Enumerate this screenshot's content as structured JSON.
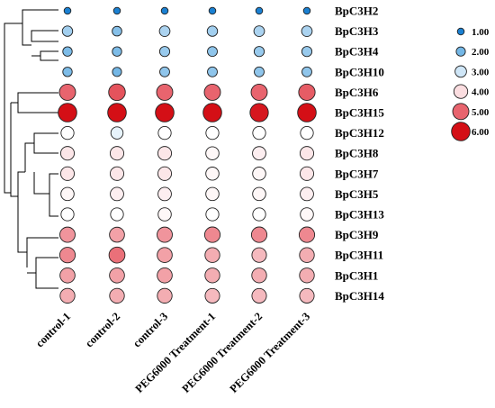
{
  "chart_data": {
    "type": "bubble-heatmap",
    "rows": [
      "BpC3H2",
      "BpC3H3",
      "BpC3H4",
      "BpC3H10",
      "BpC3H6",
      "BpC3H15",
      "BpC3H12",
      "BpC3H8",
      "BpC3H7",
      "BpC3H5",
      "BpC3H13",
      "BpC3H9",
      "BpC3H11",
      "BpC3H1",
      "BpC3H14"
    ],
    "columns": [
      "control-1",
      "control-2",
      "control-3",
      "PEG6000 Treatment-1",
      "PEG6000 Treatment-2",
      "PEG6000 Treatment-3"
    ],
    "values": [
      [
        1.0,
        1.0,
        1.0,
        1.0,
        1.0,
        1.0
      ],
      [
        2.5,
        2.2,
        2.6,
        2.5,
        2.6,
        2.6
      ],
      [
        2.1,
        2.1,
        2.4,
        2.3,
        2.4,
        2.4
      ],
      [
        2.1,
        2.0,
        2.3,
        2.3,
        2.3,
        2.3
      ],
      [
        5.0,
        5.2,
        5.0,
        5.0,
        5.0,
        5.1
      ],
      [
        6.0,
        6.0,
        6.0,
        6.0,
        5.9,
        6.0
      ],
      [
        3.6,
        3.3,
        3.6,
        3.6,
        3.6,
        3.6
      ],
      [
        3.9,
        3.9,
        3.9,
        3.7,
        3.8,
        3.9
      ],
      [
        3.9,
        3.9,
        3.9,
        3.7,
        3.7,
        3.9
      ],
      [
        3.7,
        3.8,
        3.8,
        3.7,
        3.7,
        3.8
      ],
      [
        3.6,
        3.6,
        3.7,
        3.6,
        3.6,
        3.7
      ],
      [
        4.6,
        4.5,
        4.6,
        4.7,
        4.7,
        4.7
      ],
      [
        4.7,
        4.9,
        4.5,
        4.4,
        4.3,
        4.4
      ],
      [
        4.5,
        4.5,
        4.5,
        4.4,
        4.4,
        4.4
      ],
      [
        4.4,
        4.4,
        4.4,
        4.3,
        4.3,
        4.3
      ]
    ],
    "legend": {
      "values": [
        1.0,
        2.0,
        3.0,
        4.0,
        5.0,
        6.0
      ],
      "labels": [
        "1.00",
        "2.00",
        "3.00",
        "4.00",
        "5.00",
        "6.00"
      ],
      "position": "top-right"
    },
    "dendrogram": "left",
    "colors": {
      "low": "#1f7fd0",
      "mid_low": "#cfe6f6",
      "mid": "#ffffff",
      "mid_high": "#f0b0b5",
      "high": "#d7191c"
    }
  }
}
